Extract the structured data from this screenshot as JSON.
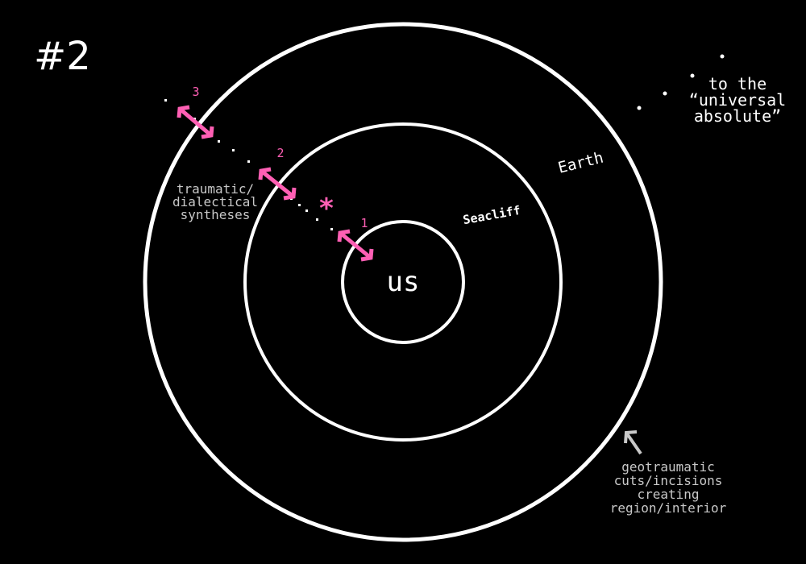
{
  "diagram": {
    "page_number": "#2",
    "circles": {
      "inner_label": "us",
      "middle_label": "Seacliff",
      "outer_label": "Earth"
    },
    "markers": {
      "arrow_1_number": "1",
      "arrow_2_number": "2",
      "arrow_3_number": "3",
      "asterisk": "*"
    },
    "annotations": {
      "universal_line1": "to the",
      "universal_line2": "“universal",
      "universal_line3": "absolute”",
      "syntheses_line1": "traumatic/",
      "syntheses_line2": "dialectical",
      "syntheses_line3": "syntheses",
      "cuts_line1": "geotraumatic",
      "cuts_line2": "cuts/incisions",
      "cuts_line3": "creating",
      "cuts_line4": "region/interior"
    }
  },
  "colors": {
    "background": "#000000",
    "foreground": "#ffffff",
    "accent_pink": "#ff5fb4",
    "muted_gray": "#c8c8c8"
  }
}
